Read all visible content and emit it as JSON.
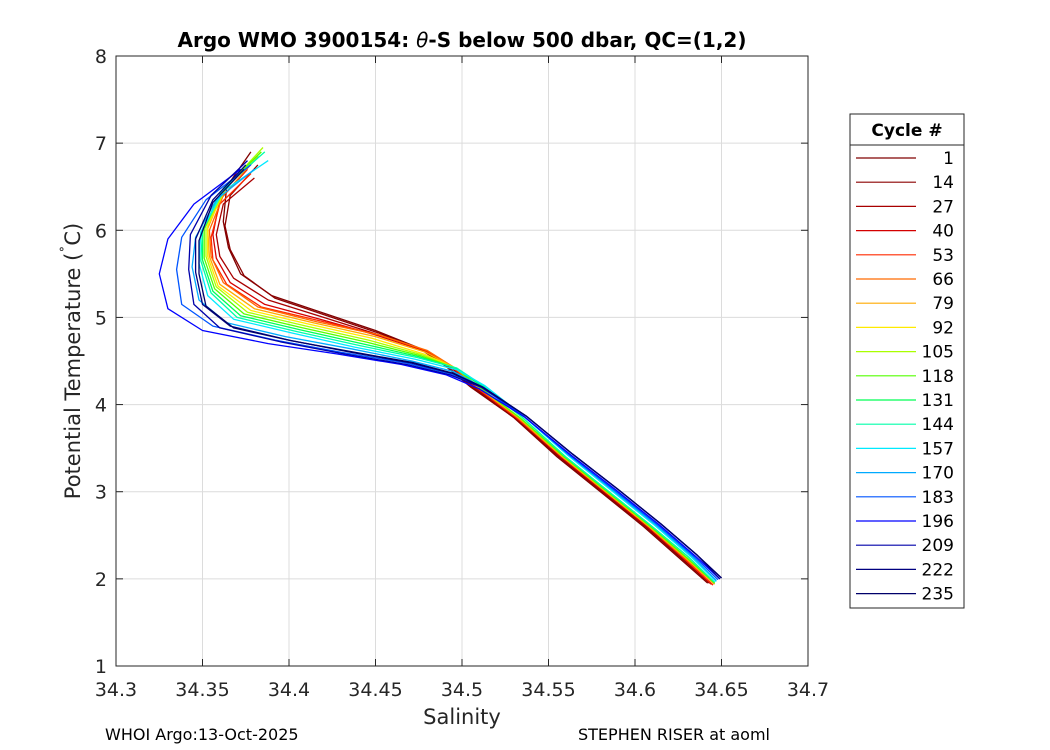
{
  "chart_data": {
    "type": "line",
    "title_main": "Argo WMO 3900154: ",
    "title_theta": "θ",
    "title_rest": "-S below 500 dbar,  QC=(1,2)",
    "xlabel": "Salinity",
    "ylabel_main": "Potential Temperature (",
    "ylabel_deg": "˚",
    "ylabel_end": "C)",
    "xlim": [
      34.3,
      34.7
    ],
    "ylim": [
      1,
      8
    ],
    "xticks": [
      "34.3",
      "34.35",
      "34.4",
      "34.45",
      "34.5",
      "34.55",
      "34.6",
      "34.65",
      "34.7"
    ],
    "xtick_values": [
      34.3,
      34.35,
      34.4,
      34.45,
      34.5,
      34.55,
      34.6,
      34.65,
      34.7
    ],
    "yticks": [
      "1",
      "2",
      "3",
      "4",
      "5",
      "6",
      "7",
      "8"
    ],
    "ytick_values": [
      1,
      2,
      3,
      4,
      5,
      6,
      7,
      8
    ],
    "grid": true,
    "legend_title": "Cycle #",
    "legend_position": "right",
    "series": [
      {
        "name": "1",
        "color": "#800000",
        "s": [
          34.378,
          34.364,
          34.362,
          34.365,
          34.372,
          34.39,
          34.42,
          34.45,
          34.475,
          34.49,
          34.505,
          34.53,
          34.555,
          34.58,
          34.605,
          34.625,
          34.642
        ],
        "t": [
          6.9,
          6.5,
          6.1,
          5.8,
          5.5,
          5.25,
          5.05,
          4.85,
          4.65,
          4.45,
          4.2,
          3.85,
          3.4,
          3.0,
          2.6,
          2.25,
          1.95
        ]
      },
      {
        "name": "14",
        "color": "#8c0000",
        "s": [
          34.382,
          34.366,
          34.363,
          34.366,
          34.374,
          34.392,
          34.422,
          34.452,
          34.477,
          34.492,
          34.506,
          34.53,
          34.556,
          34.581,
          34.606,
          34.626,
          34.643
        ],
        "t": [
          6.75,
          6.4,
          6.05,
          5.78,
          5.48,
          5.22,
          5.02,
          4.82,
          4.63,
          4.43,
          4.2,
          3.85,
          3.4,
          3.0,
          2.6,
          2.25,
          1.95
        ]
      },
      {
        "name": "27",
        "color": "#a80000",
        "s": [
          34.38,
          34.362,
          34.358,
          34.36,
          34.368,
          34.388,
          34.42,
          34.452,
          34.478,
          34.494,
          34.507,
          34.531,
          34.557,
          34.582,
          34.607,
          34.627,
          34.644
        ],
        "t": [
          6.6,
          6.3,
          5.95,
          5.7,
          5.45,
          5.2,
          5.0,
          4.8,
          4.62,
          4.42,
          4.2,
          3.85,
          3.4,
          3.0,
          2.6,
          2.25,
          1.94
        ]
      },
      {
        "name": "40",
        "color": "#d40000",
        "s": [
          34.376,
          34.36,
          34.356,
          34.358,
          34.366,
          34.386,
          34.418,
          34.45,
          34.478,
          34.495,
          34.508,
          34.532,
          34.557,
          34.582,
          34.607,
          34.628,
          34.645
        ],
        "t": [
          6.7,
          6.35,
          5.95,
          5.68,
          5.4,
          5.15,
          4.98,
          4.8,
          4.62,
          4.42,
          4.2,
          3.85,
          3.4,
          3.0,
          2.6,
          2.24,
          1.93
        ]
      },
      {
        "name": "53",
        "color": "#ff2a00",
        "s": [
          34.378,
          34.36,
          34.355,
          34.356,
          34.364,
          34.384,
          34.418,
          34.452,
          34.479,
          34.495,
          34.508,
          34.532,
          34.558,
          34.583,
          34.608,
          34.628,
          34.645
        ],
        "t": [
          6.65,
          6.3,
          5.92,
          5.66,
          5.38,
          5.12,
          4.96,
          4.8,
          4.62,
          4.42,
          4.2,
          3.84,
          3.4,
          3.0,
          2.6,
          2.24,
          1.93
        ]
      },
      {
        "name": "66",
        "color": "#ff6a00",
        "s": [
          34.38,
          34.362,
          34.354,
          34.355,
          34.362,
          34.382,
          34.416,
          34.452,
          34.48,
          34.496,
          34.509,
          34.533,
          34.558,
          34.583,
          34.608,
          34.629,
          34.646
        ],
        "t": [
          6.8,
          6.4,
          6.0,
          5.7,
          5.4,
          5.12,
          4.95,
          4.8,
          4.62,
          4.42,
          4.2,
          3.84,
          3.4,
          3.0,
          2.6,
          2.24,
          1.94
        ]
      },
      {
        "name": "79",
        "color": "#ffaa00",
        "s": [
          34.382,
          34.362,
          34.353,
          34.354,
          34.36,
          34.38,
          34.414,
          34.45,
          34.479,
          34.496,
          34.509,
          34.533,
          34.558,
          34.583,
          34.608,
          34.629,
          34.646
        ],
        "t": [
          6.85,
          6.45,
          6.02,
          5.7,
          5.38,
          5.1,
          4.94,
          4.78,
          4.6,
          4.42,
          4.2,
          3.84,
          3.4,
          3.0,
          2.6,
          2.24,
          1.94
        ]
      },
      {
        "name": "92",
        "color": "#ffea00",
        "s": [
          34.384,
          34.364,
          34.353,
          34.353,
          34.359,
          34.378,
          34.412,
          34.448,
          34.478,
          34.496,
          34.51,
          34.534,
          34.559,
          34.584,
          34.609,
          34.63,
          34.646
        ],
        "t": [
          6.9,
          6.5,
          6.05,
          5.7,
          5.36,
          5.08,
          4.92,
          4.76,
          4.58,
          4.42,
          4.2,
          3.84,
          3.4,
          3.0,
          2.6,
          2.24,
          1.95
        ]
      },
      {
        "name": "105",
        "color": "#aaff00",
        "s": [
          34.385,
          34.364,
          34.352,
          34.352,
          34.358,
          34.376,
          34.41,
          34.446,
          34.477,
          34.496,
          34.51,
          34.534,
          34.559,
          34.584,
          34.609,
          34.63,
          34.646
        ],
        "t": [
          6.95,
          6.5,
          6.05,
          5.7,
          5.35,
          5.06,
          4.9,
          4.74,
          4.57,
          4.42,
          4.2,
          3.84,
          3.4,
          3.0,
          2.6,
          2.24,
          1.95
        ]
      },
      {
        "name": "118",
        "color": "#55ff00",
        "s": [
          34.384,
          34.362,
          34.351,
          34.351,
          34.357,
          34.374,
          34.408,
          34.444,
          34.476,
          34.496,
          34.51,
          34.534,
          34.559,
          34.584,
          34.609,
          34.63,
          34.646
        ],
        "t": [
          6.9,
          6.48,
          6.02,
          5.68,
          5.33,
          5.04,
          4.88,
          4.72,
          4.56,
          4.42,
          4.2,
          3.84,
          3.4,
          3.0,
          2.6,
          2.24,
          1.95
        ]
      },
      {
        "name": "131",
        "color": "#00ff55",
        "s": [
          34.383,
          34.361,
          34.35,
          34.35,
          34.356,
          34.372,
          34.406,
          34.442,
          34.475,
          34.496,
          34.511,
          34.535,
          34.56,
          34.585,
          34.61,
          34.631,
          34.646
        ],
        "t": [
          6.85,
          6.45,
          6.0,
          5.66,
          5.3,
          5.02,
          4.86,
          4.7,
          4.55,
          4.42,
          4.22,
          3.85,
          3.4,
          3.0,
          2.6,
          2.25,
          1.96
        ]
      },
      {
        "name": "144",
        "color": "#00ffaa",
        "s": [
          34.386,
          34.362,
          34.35,
          34.349,
          34.355,
          34.37,
          34.404,
          34.44,
          34.474,
          34.497,
          34.512,
          34.535,
          34.56,
          34.585,
          34.61,
          34.631,
          34.646
        ],
        "t": [
          6.9,
          6.48,
          6.0,
          5.65,
          5.28,
          5.0,
          4.84,
          4.68,
          4.54,
          4.42,
          4.22,
          3.85,
          3.4,
          3.0,
          2.6,
          2.25,
          1.96
        ]
      },
      {
        "name": "157",
        "color": "#00eaff",
        "s": [
          34.388,
          34.362,
          34.349,
          34.348,
          34.353,
          34.368,
          34.402,
          34.438,
          34.473,
          34.497,
          34.513,
          34.536,
          34.561,
          34.586,
          34.611,
          34.632,
          34.647
        ],
        "t": [
          6.8,
          6.45,
          5.98,
          5.62,
          5.25,
          4.98,
          4.82,
          4.66,
          4.52,
          4.4,
          4.22,
          3.86,
          3.42,
          3.02,
          2.62,
          2.26,
          1.97
        ]
      },
      {
        "name": "170",
        "color": "#00aaff",
        "s": [
          34.38,
          34.358,
          34.346,
          34.344,
          34.348,
          34.364,
          34.398,
          34.436,
          34.471,
          34.495,
          34.512,
          34.536,
          34.562,
          34.587,
          34.612,
          34.633,
          34.647
        ],
        "t": [
          6.7,
          6.35,
          5.92,
          5.58,
          5.2,
          4.94,
          4.78,
          4.64,
          4.5,
          4.38,
          4.2,
          3.86,
          3.42,
          3.02,
          2.62,
          2.26,
          1.98
        ]
      },
      {
        "name": "183",
        "color": "#0055ff",
        "s": [
          34.378,
          34.352,
          34.338,
          34.335,
          34.338,
          34.356,
          34.392,
          34.43,
          34.467,
          34.492,
          34.511,
          34.536,
          34.562,
          34.588,
          34.613,
          34.634,
          34.648
        ],
        "t": [
          6.75,
          6.35,
          5.92,
          5.55,
          5.15,
          4.9,
          4.74,
          4.6,
          4.48,
          4.36,
          4.2,
          3.86,
          3.42,
          3.02,
          2.62,
          2.26,
          1.99
        ]
      },
      {
        "name": "196",
        "color": "#0000ff",
        "s": [
          34.372,
          34.345,
          34.33,
          34.325,
          34.33,
          34.35,
          34.388,
          34.428,
          34.465,
          34.491,
          34.51,
          34.536,
          34.563,
          34.589,
          34.614,
          34.635,
          34.649
        ],
        "t": [
          6.7,
          6.3,
          5.9,
          5.5,
          5.1,
          4.85,
          4.7,
          4.58,
          4.46,
          4.34,
          4.18,
          3.86,
          3.42,
          3.02,
          2.62,
          2.26,
          2.0
        ]
      },
      {
        "name": "209",
        "color": "#0000aa",
        "s": [
          34.376,
          34.355,
          34.343,
          34.342,
          34.345,
          34.36,
          34.395,
          34.432,
          34.468,
          34.493,
          34.511,
          34.537,
          34.564,
          34.59,
          34.615,
          34.636,
          34.649
        ],
        "t": [
          6.8,
          6.4,
          5.95,
          5.55,
          5.15,
          4.88,
          4.72,
          4.58,
          4.46,
          4.34,
          4.2,
          3.87,
          3.43,
          3.03,
          2.63,
          2.27,
          2.0
        ]
      },
      {
        "name": "222",
        "color": "#000080",
        "s": [
          34.375,
          34.356,
          34.346,
          34.346,
          34.35,
          34.366,
          34.4,
          34.436,
          34.47,
          34.494,
          34.512,
          34.537,
          34.564,
          34.59,
          34.615,
          34.636,
          34.65
        ],
        "t": [
          6.75,
          6.35,
          5.9,
          5.52,
          5.15,
          4.9,
          4.74,
          4.6,
          4.48,
          4.36,
          4.2,
          3.87,
          3.43,
          3.03,
          2.63,
          2.27,
          2.01
        ]
      },
      {
        "name": "235",
        "color": "#00006a",
        "s": [
          34.374,
          34.356,
          34.348,
          34.348,
          34.352,
          34.368,
          34.402,
          34.438,
          34.472,
          34.495,
          34.512,
          34.537,
          34.564,
          34.59,
          34.615,
          34.636,
          34.65
        ],
        "t": [
          6.7,
          6.32,
          5.88,
          5.5,
          5.13,
          4.88,
          4.73,
          4.6,
          4.48,
          4.36,
          4.2,
          3.87,
          3.43,
          3.03,
          2.63,
          2.27,
          2.01
        ]
      }
    ]
  },
  "footer": {
    "left": "WHOI Argo:13-Oct-2025",
    "right": "STEPHEN RISER at aoml"
  }
}
